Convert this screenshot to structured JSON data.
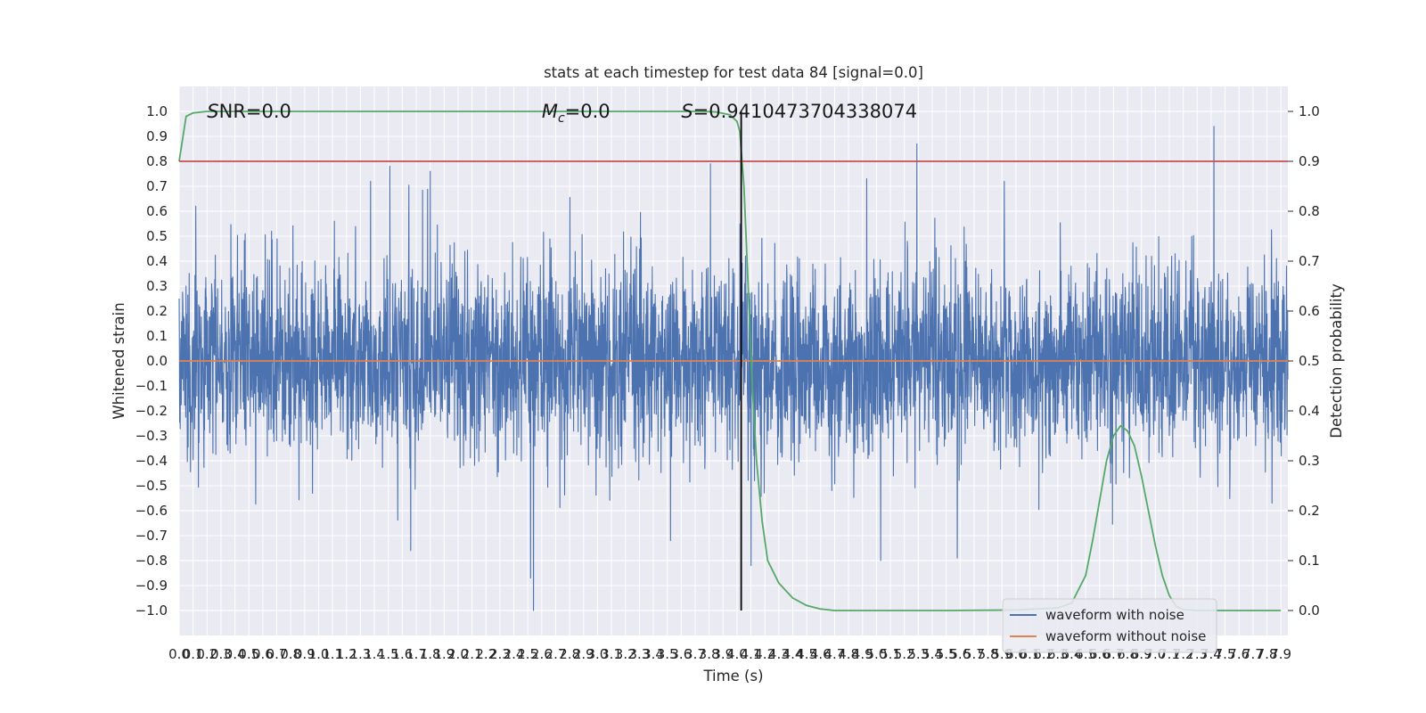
{
  "chart_data": {
    "type": "line",
    "title": "stats at each timestep for test data 84 [signal=0.0]",
    "xlabel": "Time (s)",
    "ylabel": "Whitened strain",
    "y2label": "Detection probability",
    "xlim": [
      0.0,
      7.95
    ],
    "ylim": [
      -1.1,
      1.1
    ],
    "y2lim": [
      -0.05,
      1.05
    ],
    "yticks": [
      -1.0,
      -0.9,
      -0.8,
      -0.7,
      -0.6,
      -0.5,
      -0.4,
      -0.3,
      -0.2,
      -0.1,
      0.0,
      0.1,
      0.2,
      0.3,
      0.4,
      0.5,
      0.6,
      0.7,
      0.8,
      0.9,
      1.0
    ],
    "ytick_labels": [
      "−1.0",
      "−0.9",
      "−0.8",
      "−0.7",
      "−0.6",
      "−0.5",
      "−0.4",
      "−0.3",
      "−0.2",
      "−0.1",
      "0.0",
      "0.1",
      "0.2",
      "0.3",
      "0.4",
      "0.5",
      "0.6",
      "0.7",
      "0.8",
      "0.9",
      "1.0"
    ],
    "y2ticks": [
      0.0,
      0.1,
      0.2,
      0.3,
      0.4,
      0.5,
      0.6,
      0.7,
      0.8,
      0.9,
      1.0
    ],
    "y2tick_labels": [
      "0.0",
      "0.1",
      "0.2",
      "0.3",
      "0.4",
      "0.5",
      "0.6",
      "0.7",
      "0.8",
      "0.9",
      "1.0"
    ],
    "xtick_step": 0.1,
    "xtick_count": 80,
    "grid": true,
    "annotations": [
      {
        "text": "SNR=0.0",
        "x": 0.2,
        "y": 1.0
      },
      {
        "text": "Mc",
        "text_suffix": "=0.0",
        "x": 2.6,
        "y": 1.0
      },
      {
        "text": "S=0.9410473704338074",
        "x": 3.6,
        "y": 1.0
      }
    ],
    "legend": {
      "placement": "lower-right",
      "entries": [
        {
          "name": "waveform with noise",
          "color": "#4c72b0"
        },
        {
          "name": "waveform without noise",
          "color": "#dd8452"
        }
      ]
    },
    "series": [
      {
        "name": "waveform with noise",
        "axis": "left",
        "color": "#4c72b0",
        "kind": "noise",
        "x_range": [
          0.0,
          7.95
        ],
        "typical_amplitude": 0.35,
        "envelope_peaks_up": [
          0.62,
          0.94,
          0.87,
          0.79,
          0.76,
          0.73,
          0.78
        ],
        "envelope_peaks_up_x": [
          0.12,
          7.42,
          5.29,
          3.81,
          1.8,
          4.93,
          1.51
        ],
        "envelope_peaks_down": [
          -1.0,
          -0.87,
          -0.82,
          -0.8,
          -0.79,
          -0.76
        ],
        "envelope_peaks_down_x": [
          2.54,
          2.52,
          4.1,
          5.03,
          5.58,
          1.66
        ]
      },
      {
        "name": "waveform without noise",
        "axis": "left",
        "color": "#dd8452",
        "x": [
          0.0,
          7.95
        ],
        "values": [
          0.0,
          0.0
        ]
      },
      {
        "name": "detection probability",
        "axis": "right",
        "color": "#55a868",
        "x": [
          0.0,
          0.05,
          0.1,
          0.2,
          0.4,
          1.0,
          2.0,
          3.0,
          3.5,
          3.75,
          3.85,
          3.95,
          4.0,
          4.02,
          4.05,
          4.08,
          4.11,
          4.14,
          4.18,
          4.22,
          4.3,
          4.4,
          4.5,
          4.6,
          4.7,
          5.0,
          5.5,
          6.0,
          6.3,
          6.4,
          6.5,
          6.55,
          6.6,
          6.65,
          6.7,
          6.75,
          6.8,
          6.85,
          6.9,
          6.95,
          7.0,
          7.05,
          7.1,
          7.15,
          7.2,
          7.3,
          7.5,
          7.7,
          7.9
        ],
        "values": [
          0.9,
          0.99,
          0.997,
          1.0,
          1.0,
          1.0,
          1.0,
          1.0,
          1.0,
          1.0,
          0.999,
          0.993,
          0.98,
          0.96,
          0.85,
          0.65,
          0.45,
          0.3,
          0.18,
          0.1,
          0.055,
          0.025,
          0.01,
          0.003,
          0.0,
          0.0,
          0.0,
          0.001,
          0.005,
          0.015,
          0.07,
          0.14,
          0.22,
          0.3,
          0.35,
          0.37,
          0.36,
          0.33,
          0.27,
          0.2,
          0.13,
          0.07,
          0.03,
          0.008,
          0.002,
          0.0,
          0.0,
          0.0,
          0.0
        ]
      },
      {
        "name": "threshold",
        "axis": "right",
        "color": "#c44e52",
        "x": [
          0.0,
          7.95
        ],
        "values": [
          0.9,
          0.9
        ]
      },
      {
        "name": "current time",
        "axis": "right",
        "color": "#000000",
        "kind": "vline",
        "x": [
          4.03,
          4.03
        ],
        "values": [
          0.0,
          1.0
        ]
      }
    ]
  }
}
